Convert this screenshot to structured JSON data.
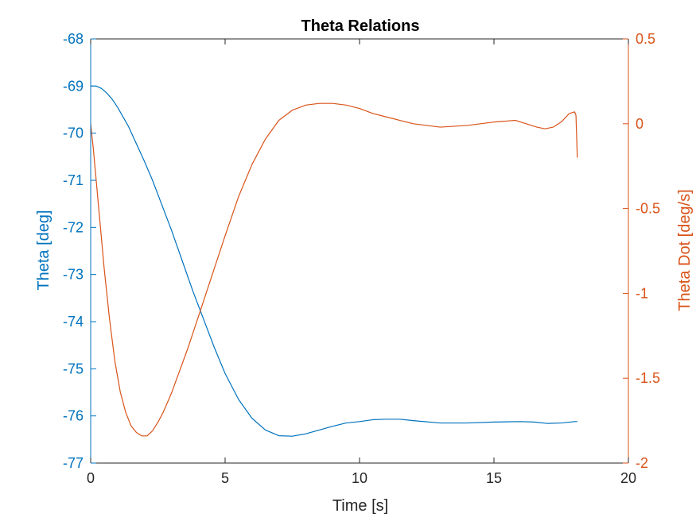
{
  "chart_data": {
    "type": "line",
    "title": "Theta Relations",
    "xlabel": "Time [s]",
    "ylabel_left": "Theta [deg]",
    "ylabel_right": "Theta Dot [deg/s]",
    "xlim": [
      0,
      20
    ],
    "ylim_left": [
      -77,
      -68
    ],
    "ylim_right": [
      -2,
      0.5
    ],
    "xticks": [
      0,
      5,
      10,
      15,
      20
    ],
    "xtick_labels": [
      "0",
      "5",
      "10",
      "15",
      "20"
    ],
    "yticks_left": [
      -68,
      -69,
      -70,
      -71,
      -72,
      -73,
      -74,
      -75,
      -76,
      -77
    ],
    "ytick_labels_left": [
      "-68",
      "-69",
      "-70",
      "-71",
      "-72",
      "-73",
      "-74",
      "-75",
      "-76",
      "-77"
    ],
    "yticks_right": [
      0.5,
      0,
      -0.5,
      -1,
      -1.5,
      -2
    ],
    "ytick_labels_right": [
      "0.5",
      "0",
      "-0.5",
      "-1",
      "-1.5",
      "-2"
    ],
    "grid": false,
    "colors": {
      "left": "#0072BD",
      "right": "#D95319",
      "axes": "#262626"
    },
    "series": [
      {
        "axis": "left",
        "x": [
          0,
          0.2,
          0.4,
          0.6,
          0.8,
          1.0,
          1.2,
          1.4,
          1.6,
          1.8,
          2.0,
          2.3,
          2.6,
          3.0,
          3.4,
          3.8,
          4.2,
          4.6,
          5.0,
          5.5,
          6.0,
          6.5,
          7.0,
          7.5,
          8.0,
          8.5,
          9.0,
          9.5,
          10.0,
          10.5,
          11.0,
          11.5,
          12.0,
          13.0,
          14.0,
          15.0,
          16.0,
          16.5,
          17.0,
          17.5,
          18.0,
          18.1
        ],
        "y": [
          -69.0,
          -69.0,
          -69.05,
          -69.15,
          -69.28,
          -69.45,
          -69.65,
          -69.85,
          -70.1,
          -70.35,
          -70.6,
          -71.0,
          -71.45,
          -72.05,
          -72.7,
          -73.35,
          -73.95,
          -74.55,
          -75.1,
          -75.65,
          -76.05,
          -76.3,
          -76.42,
          -76.43,
          -76.38,
          -76.3,
          -76.22,
          -76.15,
          -76.12,
          -76.08,
          -76.07,
          -76.07,
          -76.1,
          -76.15,
          -76.15,
          -76.13,
          -76.12,
          -76.13,
          -76.16,
          -76.15,
          -76.12,
          -76.12
        ]
      },
      {
        "axis": "right",
        "x": [
          0,
          0.1,
          0.3,
          0.5,
          0.7,
          0.9,
          1.1,
          1.3,
          1.5,
          1.7,
          1.9,
          2.1,
          2.3,
          2.5,
          2.7,
          3.0,
          3.3,
          3.6,
          4.0,
          4.5,
          5.0,
          5.5,
          6.0,
          6.5,
          7.0,
          7.5,
          8.0,
          8.5,
          9.0,
          9.5,
          10.0,
          10.5,
          11.0,
          11.5,
          12.0,
          12.5,
          13.0,
          14.0,
          15.0,
          15.8,
          16.2,
          16.6,
          16.9,
          17.2,
          17.5,
          17.8,
          18.0,
          18.05,
          18.1
        ],
        "y": [
          0.0,
          -0.15,
          -0.5,
          -0.85,
          -1.15,
          -1.4,
          -1.58,
          -1.7,
          -1.78,
          -1.82,
          -1.84,
          -1.84,
          -1.81,
          -1.76,
          -1.7,
          -1.59,
          -1.46,
          -1.33,
          -1.14,
          -0.9,
          -0.66,
          -0.43,
          -0.24,
          -0.09,
          0.02,
          0.08,
          0.11,
          0.12,
          0.12,
          0.11,
          0.09,
          0.06,
          0.04,
          0.02,
          0.0,
          -0.01,
          -0.02,
          -0.01,
          0.01,
          0.02,
          0.0,
          -0.02,
          -0.03,
          -0.02,
          0.01,
          0.06,
          0.07,
          0.05,
          -0.2
        ]
      }
    ]
  }
}
